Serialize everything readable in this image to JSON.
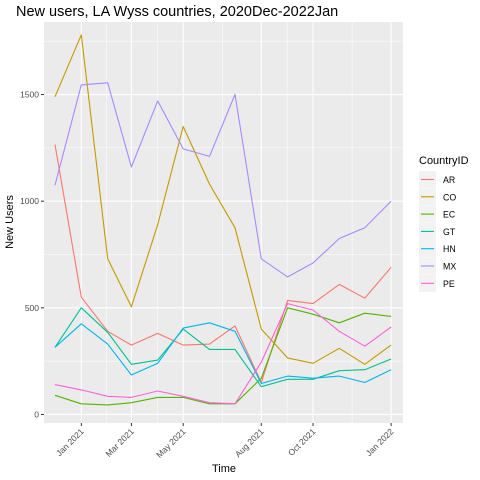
{
  "chart_data": {
    "type": "line",
    "title": "New users, LA Wyss countries, 2020Dec-2022Jan",
    "xlabel": "Time",
    "ylabel": "New Users",
    "legend_title": "CountryID",
    "legend_position": "right",
    "grid": true,
    "x_is_date": true,
    "x": [
      "2020-12",
      "2021-01",
      "2021-02",
      "2021-03",
      "2021-04",
      "2021-05",
      "2021-06",
      "2021-07",
      "2021-08",
      "2021-09",
      "2021-10",
      "2021-11",
      "2021-12",
      "2022-01"
    ],
    "xlim": [
      "2020-11-18",
      "2022-01-15"
    ],
    "ylim": [
      -40,
      1840
    ],
    "x_ticks": [
      {
        "date": "2021-01",
        "label": "Jan 2021"
      },
      {
        "date": "2021-03",
        "label": "Mar 2021"
      },
      {
        "date": "2021-05",
        "label": "May 2021"
      },
      {
        "date": "2021-08",
        "label": "Aug 2021"
      },
      {
        "date": "2021-10",
        "label": "Oct 2021"
      },
      {
        "date": "2022-01",
        "label": "Jan 2022"
      }
    ],
    "y_ticks": [
      0,
      500,
      1000,
      1500
    ],
    "series": [
      {
        "name": "AR",
        "color": "#F8766D",
        "values": [
          1265,
          550,
          390,
          325,
          380,
          325,
          330,
          415,
          150,
          535,
          520,
          610,
          545,
          690
        ]
      },
      {
        "name": "CO",
        "color": "#C49A00",
        "values": [
          1490,
          1780,
          730,
          505,
          890,
          1350,
          1080,
          875,
          400,
          265,
          240,
          310,
          235,
          325
        ]
      },
      {
        "name": "EC",
        "color": "#53B400",
        "values": [
          90,
          50,
          45,
          55,
          80,
          80,
          50,
          50,
          170,
          500,
          470,
          430,
          475,
          460
        ]
      },
      {
        "name": "GT",
        "color": "#00C094",
        "values": [
          315,
          500,
          385,
          235,
          255,
          400,
          305,
          305,
          130,
          165,
          165,
          205,
          210,
          260
        ]
      },
      {
        "name": "HN",
        "color": "#00B6EB",
        "values": [
          315,
          425,
          330,
          185,
          240,
          405,
          430,
          390,
          145,
          180,
          170,
          180,
          150,
          210
        ]
      },
      {
        "name": "MX",
        "color": "#A58AFF",
        "values": [
          1075,
          1545,
          1555,
          1160,
          1470,
          1245,
          1210,
          1500,
          730,
          645,
          710,
          825,
          875,
          1000
        ]
      },
      {
        "name": "PE",
        "color": "#FB61D7",
        "values": [
          140,
          115,
          85,
          80,
          110,
          85,
          55,
          50,
          245,
          520,
          490,
          390,
          320,
          410
        ]
      }
    ]
  }
}
